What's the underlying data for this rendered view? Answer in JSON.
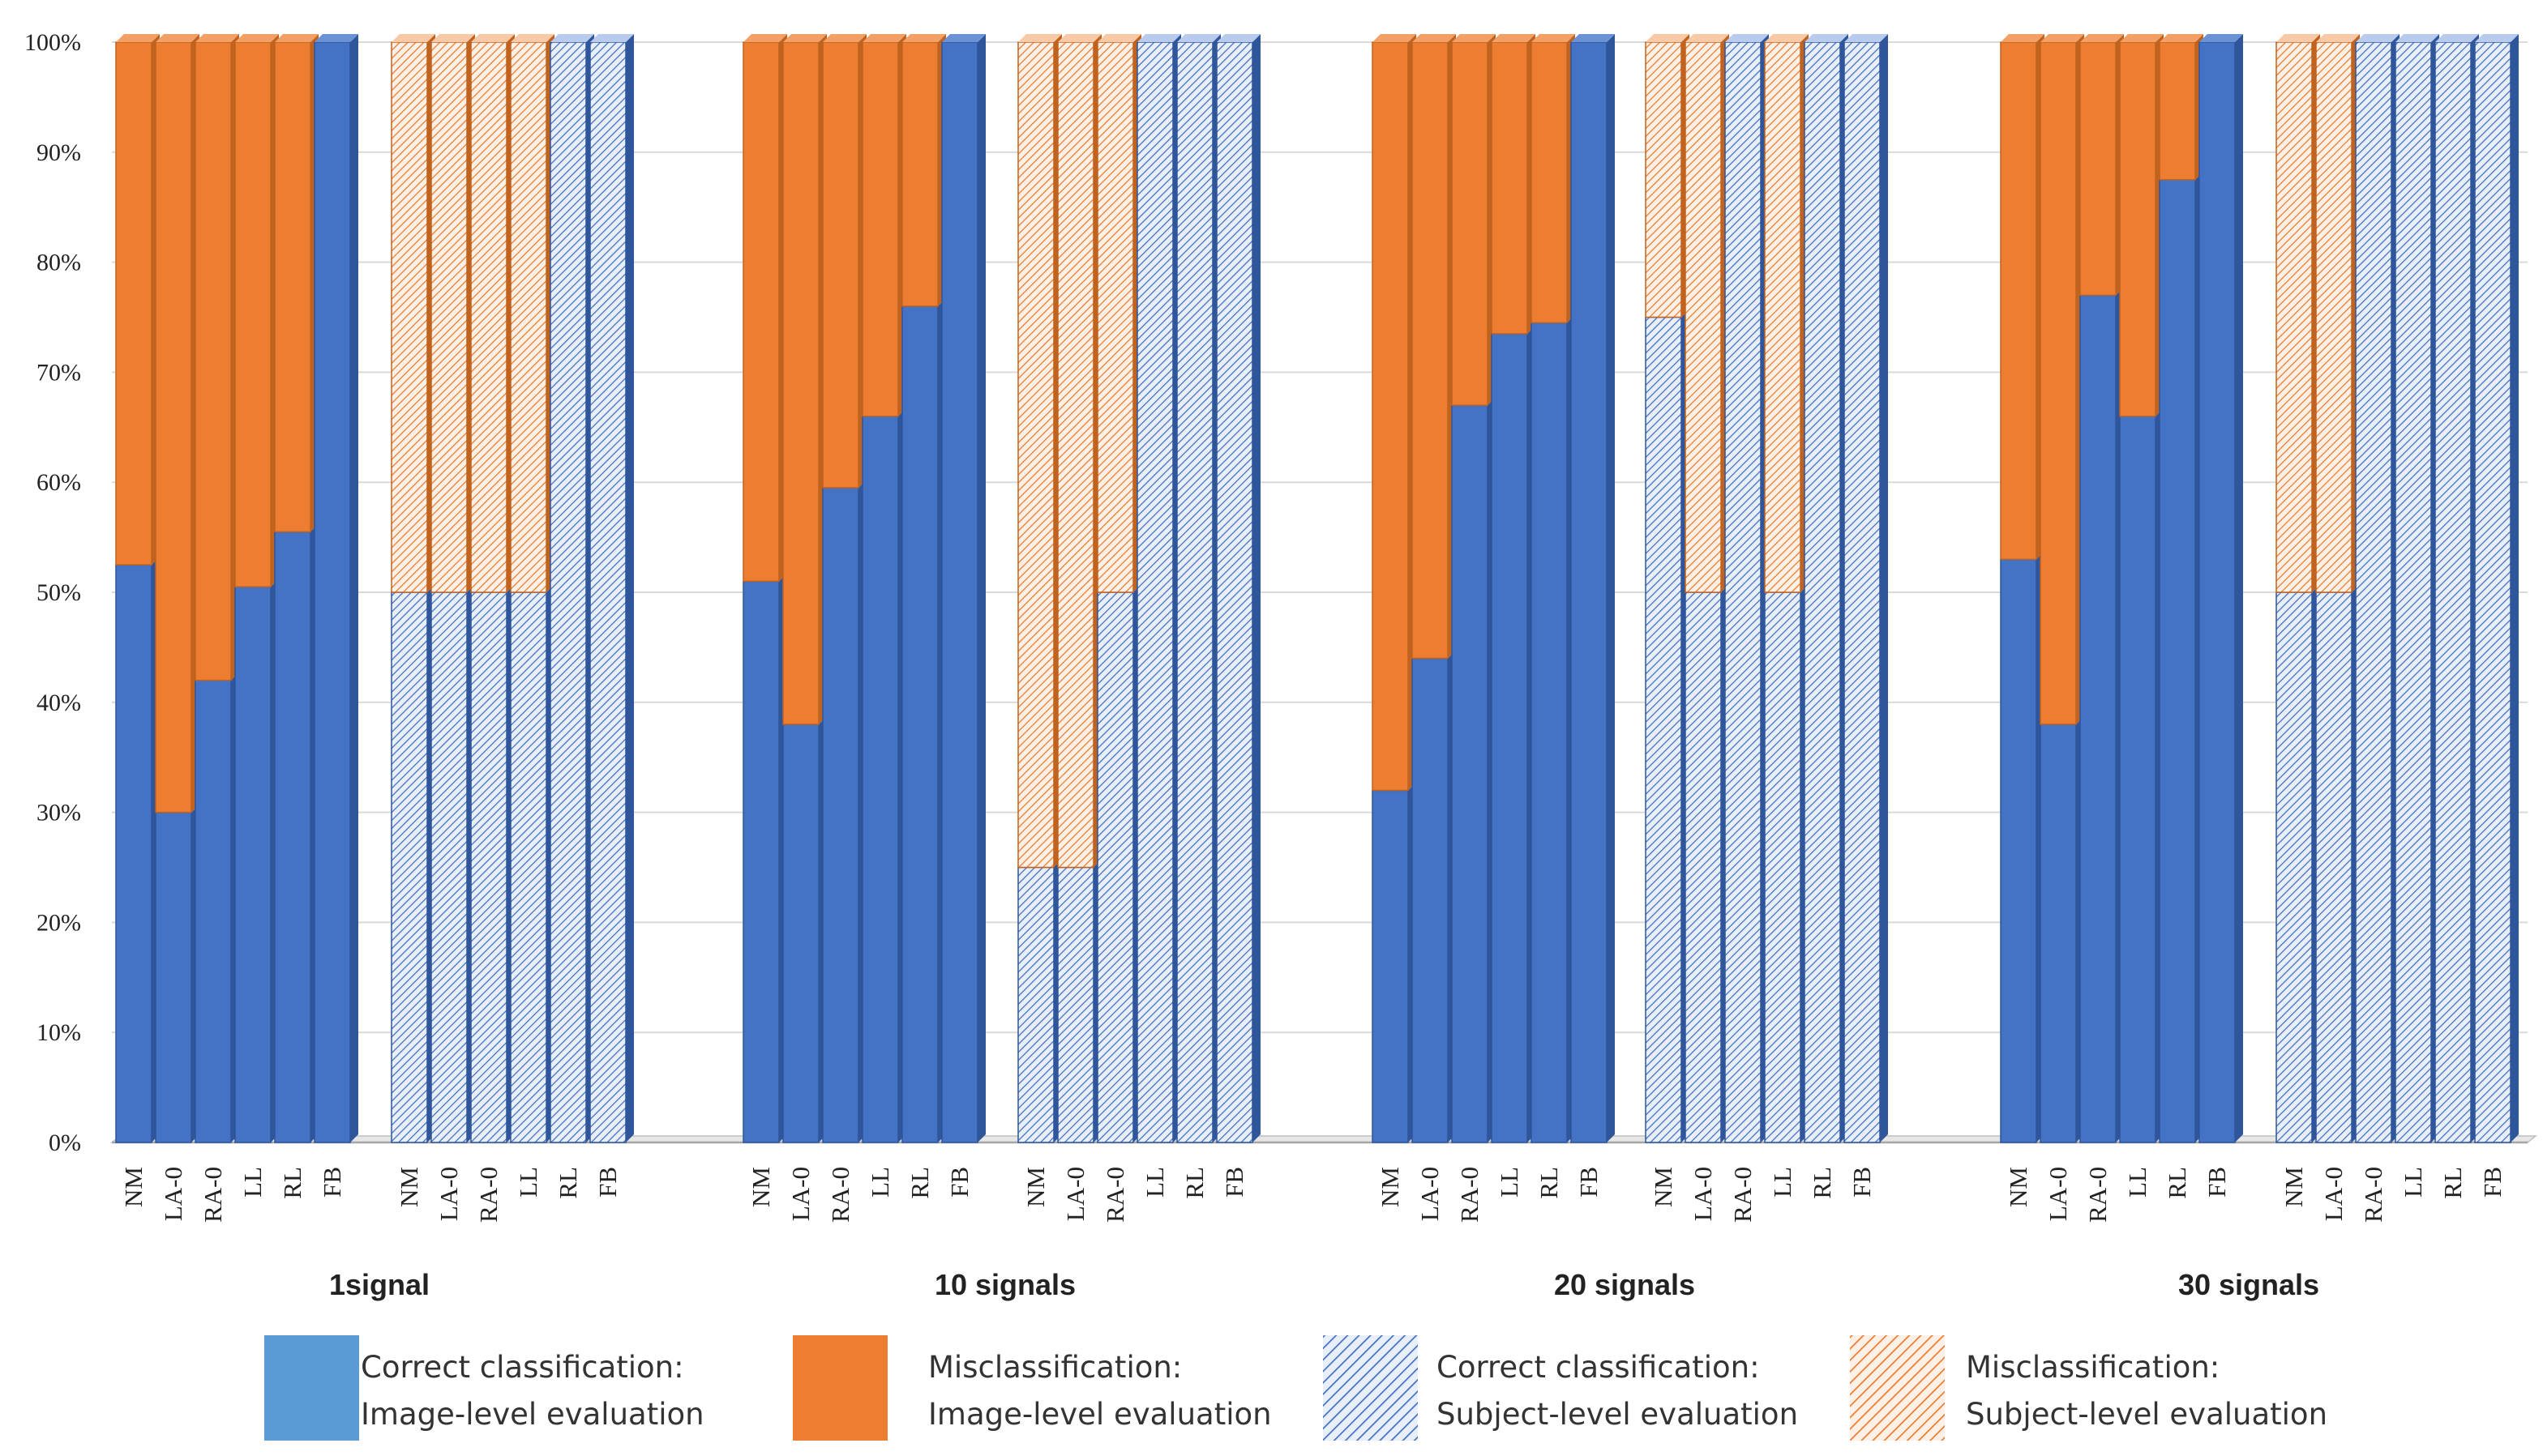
{
  "chart_data": {
    "type": "bar",
    "stacked": true,
    "percent_stacked": true,
    "title": "",
    "xlabel": "",
    "ylabel": "",
    "ylim": [
      0,
      100
    ],
    "yticks": [
      "0%",
      "10%",
      "20%",
      "30%",
      "40%",
      "50%",
      "60%",
      "70%",
      "80%",
      "90%",
      "100%"
    ],
    "categories": [
      "NM",
      "LA-0",
      "RA-0",
      "LL",
      "RL",
      "FB"
    ],
    "groups": [
      {
        "label": "1signal",
        "image_level_correct": [
          52.5,
          30,
          42,
          50.5,
          55.5,
          100
        ],
        "subject_level_correct": [
          50,
          50,
          50,
          50,
          100,
          100
        ]
      },
      {
        "label": "10 signals",
        "image_level_correct": [
          51,
          38,
          59.5,
          66,
          76,
          100
        ],
        "subject_level_correct": [
          25,
          25,
          50,
          100,
          100,
          100
        ]
      },
      {
        "label": "20 signals",
        "image_level_correct": [
          32,
          44,
          67,
          73.5,
          74.5,
          100
        ],
        "subject_level_correct": [
          75,
          50,
          100,
          50,
          100,
          100
        ]
      },
      {
        "label": "30 signals",
        "image_level_correct": [
          53,
          38,
          77,
          66,
          87.5,
          100
        ],
        "subject_level_correct": [
          50,
          50,
          100,
          100,
          100,
          100
        ]
      }
    ],
    "legend": [
      {
        "key": "img_correct",
        "line1": "Correct  classification:",
        "line2": "Image-level evaluation",
        "color": "#4472c4",
        "swatch": "#5b9bd5",
        "pattern": "solid"
      },
      {
        "key": "img_mis",
        "line1": "Misclassification:",
        "line2": "Image-level evaluation",
        "color": "#ed7d31",
        "swatch": "#ed7d31",
        "pattern": "solid"
      },
      {
        "key": "subj_correct",
        "line1": "Correct  classification:",
        "line2": "Subject-level evaluation",
        "color": "#4472c4",
        "swatch": "#4472c4",
        "pattern": "hatch"
      },
      {
        "key": "subj_mis",
        "line1": "Misclassification:",
        "line2": "Subject-level evaluation",
        "color": "#ed7d31",
        "swatch": "#ed7d31",
        "pattern": "hatch"
      }
    ],
    "legend_position": "bottom",
    "grid": true
  }
}
